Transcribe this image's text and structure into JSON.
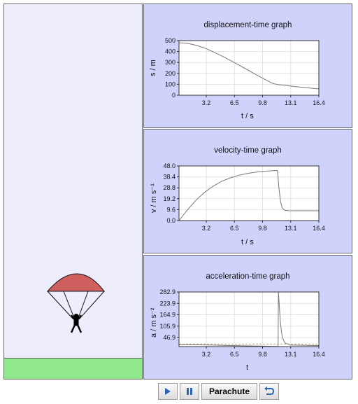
{
  "colors": {
    "panel_bg": "#cfd3fb",
    "sim_bg": "#ededfb",
    "ground": "#90e98c",
    "canopy": "#d0605f",
    "plot_line": "#777777",
    "button_blue": "#2c63b5"
  },
  "controls": {
    "play_icon": "play-icon",
    "pause_icon": "pause-icon",
    "parachute_label": "Parachute",
    "reset_icon": "reset-icon"
  },
  "graphs": {
    "displacement": {
      "title": "displacement-time graph",
      "ylabel": "s / m",
      "xlabel": "t / s"
    },
    "velocity": {
      "title": "velocity-time graph",
      "ylabel": "v / m s⁻¹",
      "xlabel": "t / s"
    },
    "acceleration": {
      "title": "acceleration-time graph",
      "ylabel": "a / m s⁻²",
      "xlabel": "t"
    }
  },
  "chart_data": [
    {
      "type": "line",
      "title": "displacement-time graph",
      "xlabel": "t / s",
      "ylabel": "s / m",
      "x_ticks": [
        3.2,
        6.5,
        9.8,
        13.1,
        16.4
      ],
      "y_ticks": [
        0,
        100,
        200,
        300,
        400,
        500
      ],
      "xlim": [
        0,
        16.4
      ],
      "ylim": [
        0,
        500
      ],
      "grid": true,
      "series": [
        {
          "x": [
            0,
            1,
            2,
            3,
            4,
            5,
            6,
            7,
            8,
            9,
            10,
            11,
            11.6,
            12,
            13,
            14,
            15,
            16.4
          ],
          "y": [
            480,
            475,
            458,
            432,
            398,
            360,
            320,
            277,
            234,
            190,
            148,
            108,
            97,
            95,
            85,
            76,
            68,
            58
          ]
        }
      ]
    },
    {
      "type": "line",
      "title": "velocity-time graph",
      "xlabel": "t / s",
      "ylabel": "v / m s⁻¹",
      "x_ticks": [
        3.2,
        6.5,
        9.8,
        13.1,
        16.4
      ],
      "y_ticks": [
        0.0,
        9.6,
        19.2,
        28.8,
        38.4,
        48.0
      ],
      "xlim": [
        0,
        16.4
      ],
      "ylim": [
        0,
        48
      ],
      "grid": true,
      "series": [
        {
          "x": [
            0,
            1,
            2,
            3,
            4,
            5,
            6,
            7,
            8,
            9,
            10,
            11,
            11.55,
            11.7,
            11.9,
            12.1,
            12.4,
            12.8,
            13.5,
            14.5,
            16.4
          ],
          "y": [
            0,
            9.5,
            18,
            24.8,
            30.2,
            34.5,
            37.5,
            39.8,
            41.4,
            42.5,
            43.3,
            43.8,
            44,
            30,
            17,
            11,
            9,
            8.7,
            8.6,
            8.6,
            8.6
          ]
        }
      ]
    },
    {
      "type": "line",
      "title": "acceleration-time graph",
      "xlabel": "t",
      "ylabel": "a / m s⁻²",
      "x_ticks": [
        3.2,
        6.5,
        9.8,
        13.1,
        16.4
      ],
      "y_ticks": [
        46.9,
        105.9,
        164.9,
        223.9,
        282.9
      ],
      "xlim": [
        0,
        16.4
      ],
      "ylim": [
        0,
        282.9
      ],
      "grid": true,
      "series": [
        {
          "x": [
            0,
            2,
            4,
            6,
            8,
            10,
            11.5,
            11.62,
            11.66,
            11.75,
            11.9,
            12.1,
            12.4,
            13,
            16.4
          ],
          "y": [
            9.8,
            9,
            7.5,
            5.5,
            3.5,
            2,
            1,
            0,
            282.9,
            220,
            120,
            50,
            20,
            8,
            5
          ]
        },
        {
          "x": [
            0,
            16.4
          ],
          "y": [
            13,
            13
          ]
        }
      ]
    }
  ]
}
